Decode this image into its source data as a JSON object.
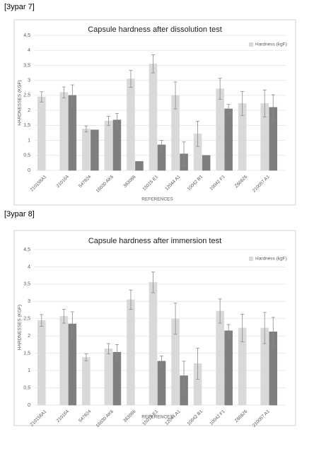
{
  "captions": [
    "[3ypar 7]",
    "[3ypar 8]"
  ],
  "chart_data": [
    {
      "type": "bar",
      "title": "Capsule hardness after dissolution test",
      "x_label": "REFERENCES",
      "y_label": "HARDNESSES (KGF)",
      "categories": [
        "210158A1",
        "210164",
        "547824",
        "16030 AK6",
        "363086",
        "15015 E1",
        "12044 A1",
        "10042 B1",
        "10042 F1",
        "Z66626",
        "210057 A1"
      ],
      "series": [
        {
          "name": "Hardness (kgF)",
          "color": "#d9d9d9",
          "values": [
            2.45,
            2.6,
            1.38,
            1.65,
            3.05,
            3.55,
            2.5,
            1.22,
            2.72,
            2.23,
            2.23
          ],
          "errors": [
            0.17,
            0.18,
            0.1,
            0.15,
            0.28,
            0.3,
            0.45,
            0.42,
            0.35,
            0.4,
            0.45
          ]
        },
        {
          "color": "#7f7f7f",
          "values": [
            null,
            2.5,
            1.35,
            1.68,
            0.3,
            0.85,
            0.55,
            0.5,
            2.05,
            null,
            2.1
          ],
          "errors": [
            null,
            0.35,
            null,
            0.22,
            null,
            0.15,
            0.4,
            null,
            0.15,
            null,
            0.42
          ]
        }
      ],
      "ylim": [
        0,
        4.5
      ],
      "yticks": [
        0,
        {
          "value": 0.5,
          "label": "0,5"
        },
        1,
        {
          "value": 1.5,
          "label": "1,5"
        },
        2,
        {
          "value": 2.5,
          "label": "2,5"
        },
        3,
        {
          "value": 3.5,
          "label": "3,5"
        },
        4,
        {
          "value": 4.5,
          "label": "4,5"
        }
      ],
      "grid": true,
      "legend": "upper right"
    },
    {
      "type": "bar",
      "title": "Capsule hardness after immersion test",
      "x_label": "REFERENCES",
      "y_label": "HARDNESSES (KGF)",
      "categories": [
        "210158A1",
        "210164",
        "547824",
        "16030 AK6",
        "363086",
        "15015 E1",
        "12044 A1",
        "10042 B1",
        "10042 F1",
        "Z66626",
        "210057 A1"
      ],
      "series": [
        {
          "name": "Hardness (kgF)",
          "color": "#d9d9d9",
          "values": [
            2.45,
            2.57,
            1.38,
            1.63,
            3.05,
            3.55,
            2.5,
            1.2,
            2.72,
            2.23,
            2.23
          ],
          "errors": [
            0.17,
            0.2,
            0.1,
            0.15,
            0.28,
            0.3,
            0.45,
            0.45,
            0.35,
            0.4,
            0.45
          ]
        },
        {
          "color": "#7f7f7f",
          "values": [
            0,
            2.35,
            0,
            1.53,
            0,
            1.27,
            0.85,
            0,
            2.15,
            0,
            2.12
          ],
          "errors": [
            null,
            0.35,
            null,
            0.22,
            null,
            0.15,
            0.42,
            null,
            0.18,
            null,
            0.42
          ]
        }
      ],
      "ylim": [
        0,
        4.5
      ],
      "yticks": [
        0,
        {
          "value": 0.5,
          "label": "0,5"
        },
        1,
        {
          "value": 1.5,
          "label": "1,5"
        },
        2,
        {
          "value": 2.5,
          "label": "2,5"
        },
        3,
        {
          "value": 3.5,
          "label": "3,5"
        },
        4,
        {
          "value": 4.5,
          "label": "4,5"
        }
      ],
      "grid": true,
      "legend": "upper right"
    }
  ]
}
